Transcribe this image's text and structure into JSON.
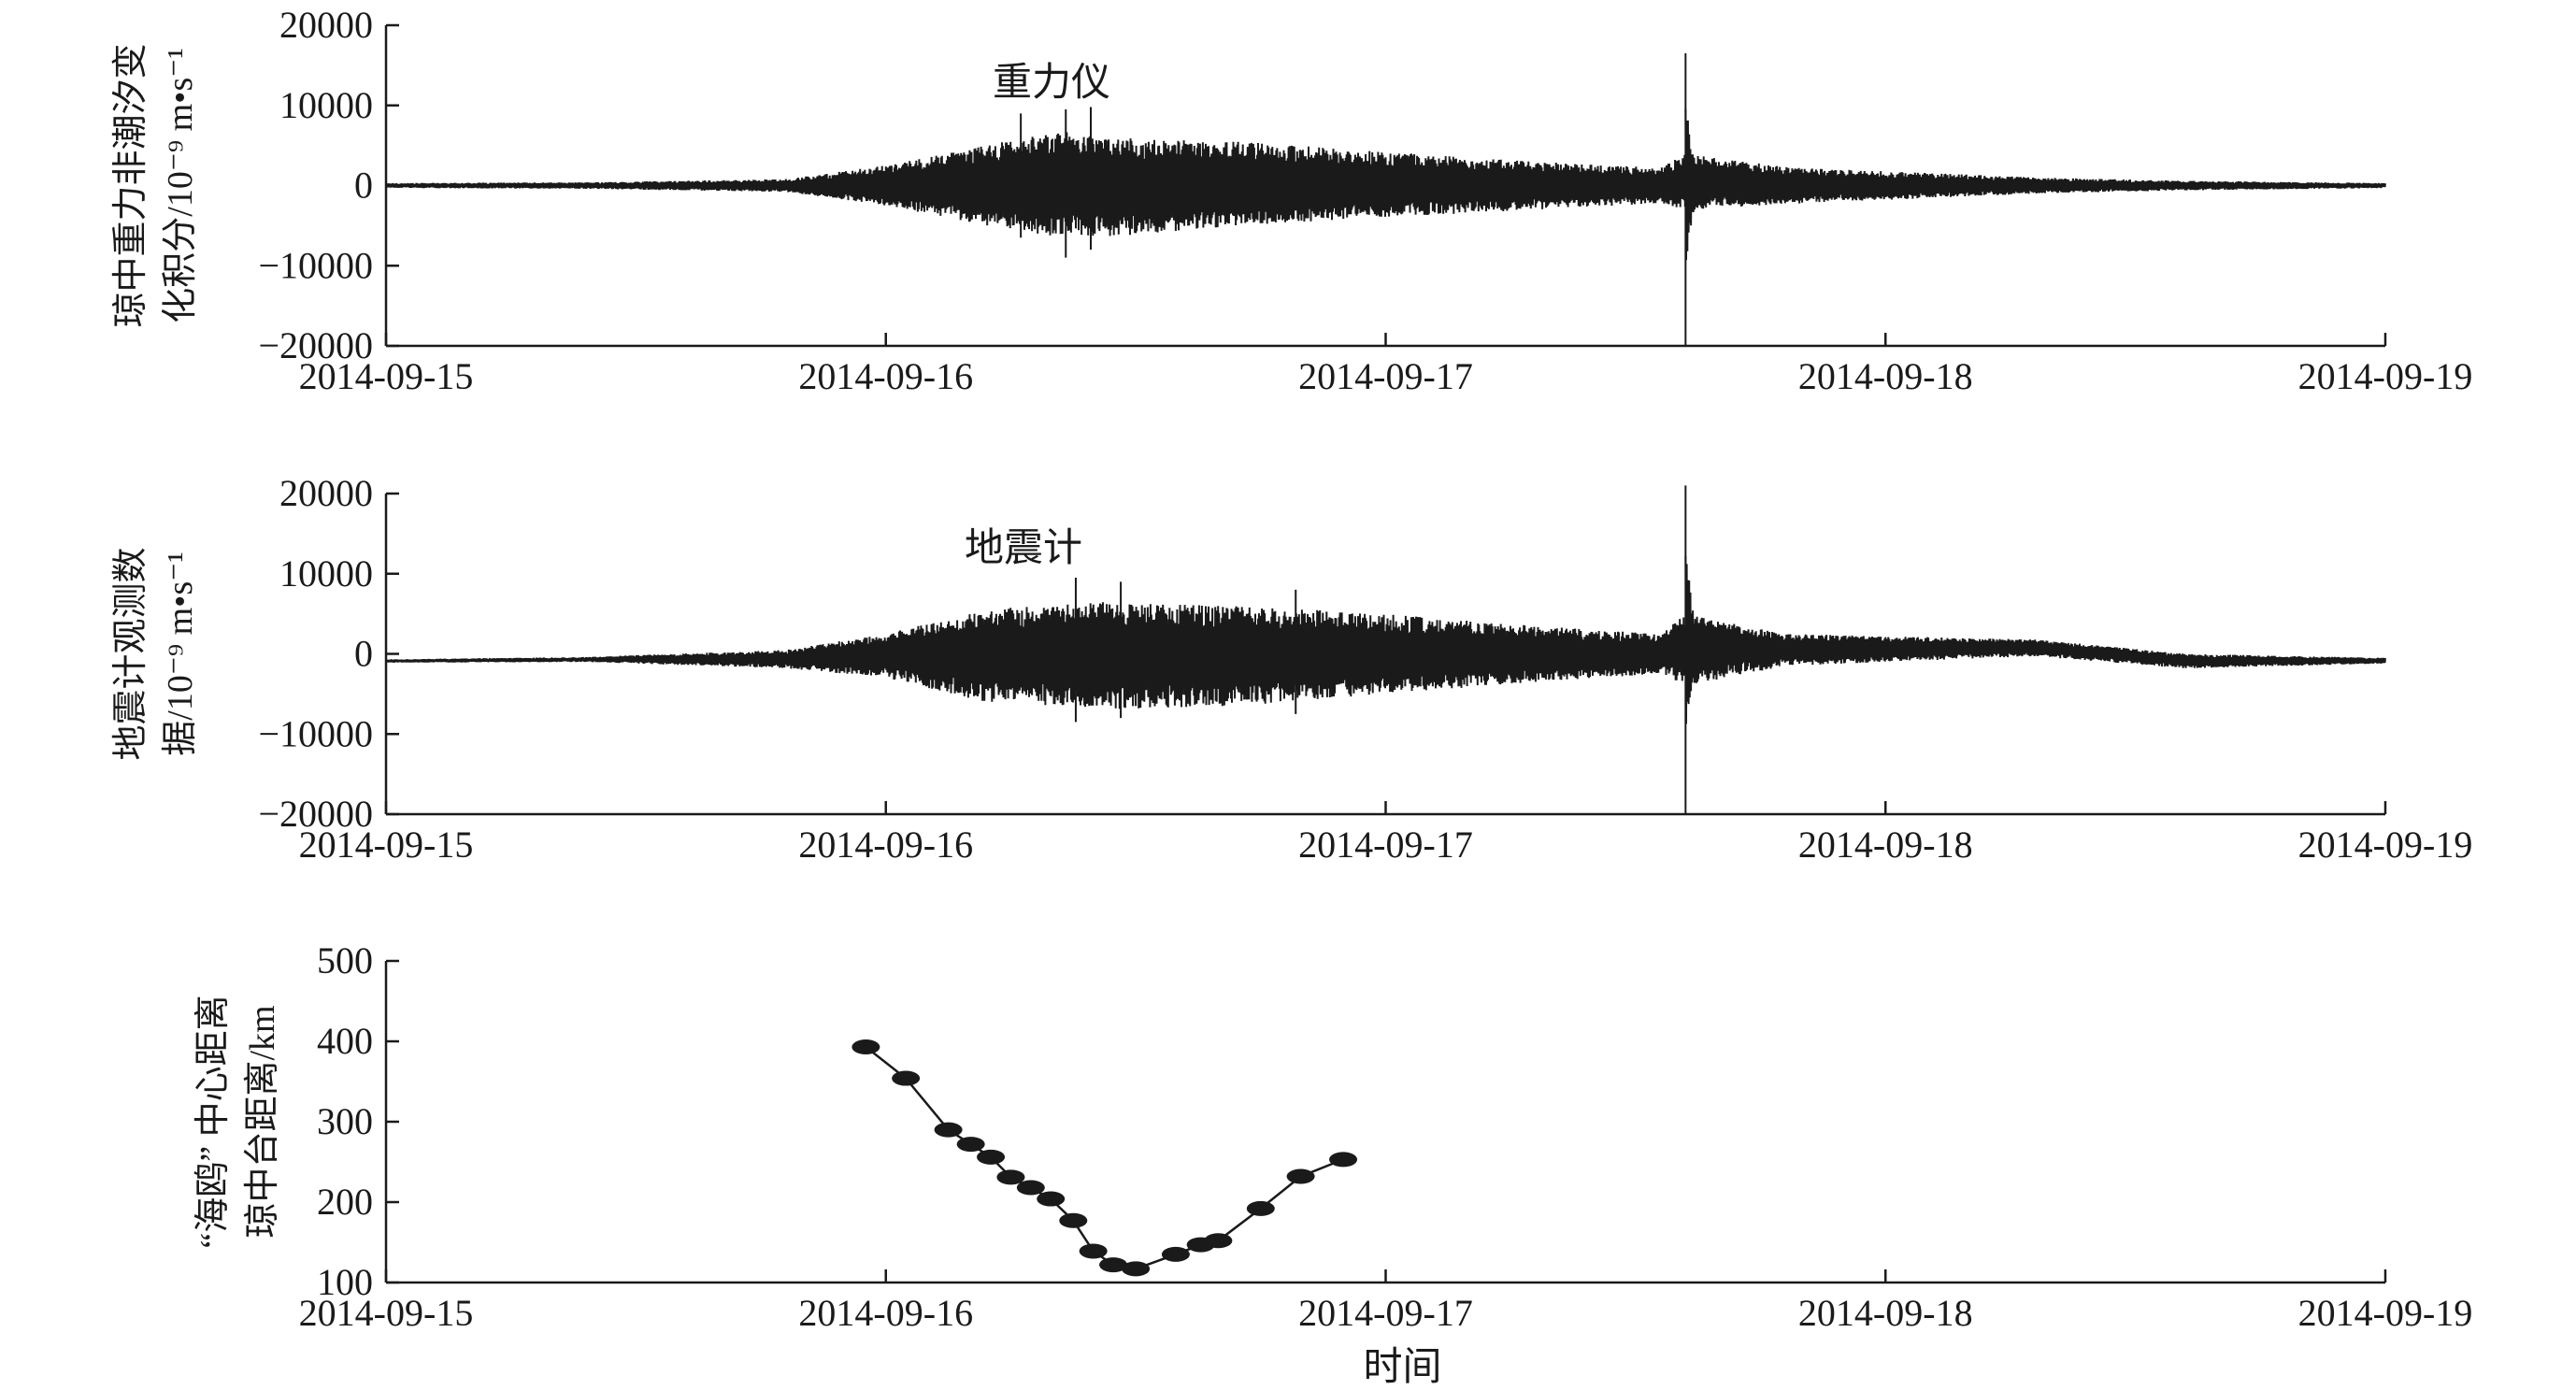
{
  "chart_data": [
    {
      "type": "line",
      "annotation": "重力仪",
      "ylabel_lines": [
        "琼中重力非潮汐变",
        "化积分/10⁻⁹ m•s⁻¹"
      ],
      "x_ticks": [
        "2014-09-15",
        "2014-09-16",
        "2014-09-17",
        "2014-09-18",
        "2014-09-19"
      ],
      "y_ticks": [
        "20000",
        "10000",
        "0",
        "−10000",
        "−20000"
      ],
      "ylim": [
        -20000,
        20000
      ],
      "xlim": [
        0,
        4
      ],
      "series": [
        {
          "x_days": [
            0.0,
            0.4,
            0.8,
            1.0,
            1.2,
            1.35,
            1.5,
            1.7,
            2.0,
            2.3,
            2.55,
            2.6,
            2.8,
            3.0,
            3.3,
            3.6,
            4.0
          ],
          "envelope_upper": [
            300,
            400,
            800,
            2500,
            5000,
            7000,
            5800,
            5500,
            4200,
            3000,
            2200,
            4000,
            2300,
            1800,
            1000,
            600,
            300
          ],
          "envelope_lower": [
            -300,
            -400,
            -800,
            -2500,
            -5000,
            -6500,
            -6200,
            -5000,
            -4000,
            -3000,
            -2200,
            -3000,
            -2300,
            -1800,
            -1000,
            -600,
            -300
          ],
          "spikes": [
            {
              "x_days": 2.6,
              "max": 16500,
              "min": -20000
            },
            {
              "x_days": 1.27,
              "max": 9000,
              "min": -6500
            },
            {
              "x_days": 1.36,
              "max": 9500,
              "min": -9000
            },
            {
              "x_days": 1.41,
              "max": 9800,
              "min": -8000
            }
          ]
        }
      ]
    },
    {
      "type": "line",
      "annotation": "地震计",
      "ylabel_lines": [
        "地震计观测数",
        "据/10⁻⁹ m•s⁻¹"
      ],
      "x_ticks": [
        "2014-09-15",
        "2014-09-16",
        "2014-09-17",
        "2014-09-18",
        "2014-09-19"
      ],
      "y_ticks": [
        "20000",
        "10000",
        "0",
        "−10000",
        "−20000"
      ],
      "ylim": [
        -20000,
        20000
      ],
      "xlim": [
        0,
        4
      ],
      "series": [
        {
          "x_days": [
            0.0,
            0.4,
            0.8,
            1.0,
            1.2,
            1.4,
            1.7,
            2.0,
            2.3,
            2.55,
            2.6,
            2.8,
            3.0,
            3.3,
            3.6,
            4.0
          ],
          "envelope_upper": [
            -700,
            -400,
            500,
            2500,
            5500,
            6500,
            6000,
            5000,
            3500,
            2500,
            5000,
            2500,
            2200,
            1800,
            0,
            -500
          ],
          "envelope_lower": [
            -1100,
            -1000,
            -1800,
            -3000,
            -6000,
            -7000,
            -6500,
            -5000,
            -3500,
            -2500,
            -4000,
            -1500,
            -1000,
            -300,
            -1800,
            -1200
          ],
          "center": [
            -900,
            -700,
            -600,
            -200,
            0,
            0,
            0,
            0,
            0,
            0,
            1500,
            500,
            600,
            800,
            -900,
            -850
          ],
          "spikes": [
            {
              "x_days": 2.6,
              "max": 21000,
              "min": -20000
            },
            {
              "x_days": 1.38,
              "max": 9500,
              "min": -8500
            },
            {
              "x_days": 1.47,
              "max": 9000,
              "min": -8000
            },
            {
              "x_days": 1.82,
              "max": 8000,
              "min": -7500
            }
          ]
        }
      ]
    },
    {
      "type": "line",
      "ylabel_lines": [
        "“海鸥” 中心距离",
        "琼中台距离/km"
      ],
      "xlabel": "时间",
      "x_ticks": [
        "2014-09-15",
        "2014-09-16",
        "2014-09-17",
        "2014-09-18",
        "2014-09-19"
      ],
      "y_ticks": [
        "500",
        "400",
        "300",
        "200",
        "100"
      ],
      "ylim": [
        100,
        500
      ],
      "xlim": [
        0,
        4
      ],
      "series": [
        {
          "x_days": [
            0.96,
            1.04,
            1.125,
            1.17,
            1.21,
            1.25,
            1.29,
            1.33,
            1.375,
            1.415,
            1.455,
            1.5,
            1.58,
            1.63,
            1.665,
            1.75,
            1.83,
            1.915
          ],
          "values": [
            393,
            354,
            290,
            272,
            256,
            231,
            218,
            204,
            177,
            139,
            122,
            117,
            135,
            147,
            152,
            192,
            232,
            253
          ]
        }
      ]
    }
  ]
}
